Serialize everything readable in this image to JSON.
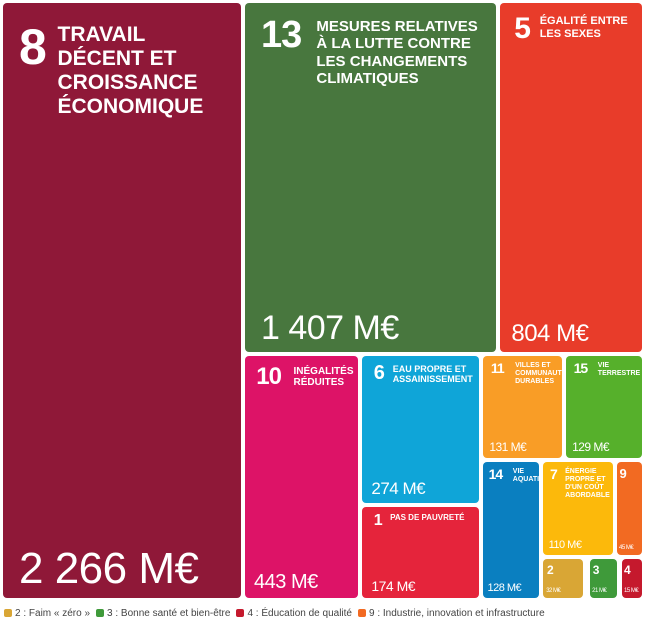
{
  "chart_data": {
    "type": "treemap",
    "tiles": [
      {
        "number": 8,
        "name": "TRAVAIL DÉCENT ET CROISSANCE ÉCONOMIQUE",
        "value": 2266,
        "value_label": "2 266 M€",
        "color": "#8f1838"
      },
      {
        "number": 13,
        "name": "MESURES RELATIVES À LA LUTTE CONTRE LES CHANGEMENTS CLIMATIQUES",
        "value": 1407,
        "value_label": "1 407 M€",
        "color": "#48773e"
      },
      {
        "number": 5,
        "name": "ÉGALITÉ ENTRE LES SEXES",
        "value": 804,
        "value_label": "804 M€",
        "color": "#e83c2a"
      },
      {
        "number": 10,
        "name": "INÉGALITÉS RÉDUITES",
        "value": 443,
        "value_label": "443 M€",
        "color": "#dd1367"
      },
      {
        "number": 6,
        "name": "EAU PROPRE ET ASSAINISSEMENT",
        "value": 274,
        "value_label": "274 M€",
        "color": "#0fa5d8"
      },
      {
        "number": 1,
        "name": "PAS DE PAUVRETÉ",
        "value": 174,
        "value_label": "174 M€",
        "color": "#e5243b"
      },
      {
        "number": 11,
        "name": "VILLES ET COMMUNAUTÉS DURABLES",
        "value": 131,
        "value_label": "131 M€",
        "color": "#f99d26"
      },
      {
        "number": 15,
        "name": "VIE TERRESTRE",
        "value": 129,
        "value_label": "129 M€",
        "color": "#56b02b"
      },
      {
        "number": 14,
        "name": "VIE AQUATIQUE",
        "value": 128,
        "value_label": "128 M€",
        "color": "#0a7fc0"
      },
      {
        "number": 7,
        "name": "ÉNERGIE PROPRE ET D'UN COÛT ABORDABLE",
        "value": 110,
        "value_label": "110 M€",
        "color": "#fcb90b"
      },
      {
        "number": 9,
        "value": 45,
        "value_label": "45 M€",
        "color": "#f26a22"
      },
      {
        "number": 2,
        "value": 32,
        "value_label": "32 M€",
        "color": "#d9a635"
      },
      {
        "number": 3,
        "value": 21,
        "value_label": "21 M€",
        "color": "#3f9a3a"
      },
      {
        "number": 4,
        "value": 15,
        "value_label": "15 M€",
        "color": "#c5192d"
      }
    ],
    "legend": [
      {
        "label": "2 : Faim « zéro »",
        "color": "#d9a635"
      },
      {
        "label": "3 : Bonne santé et bien-être",
        "color": "#3f9a3a"
      },
      {
        "label": "4 : Éducation de qualité",
        "color": "#c5192d"
      },
      {
        "label": "9 : Industrie, innovation et infrastructure",
        "color": "#f26a22"
      }
    ]
  }
}
